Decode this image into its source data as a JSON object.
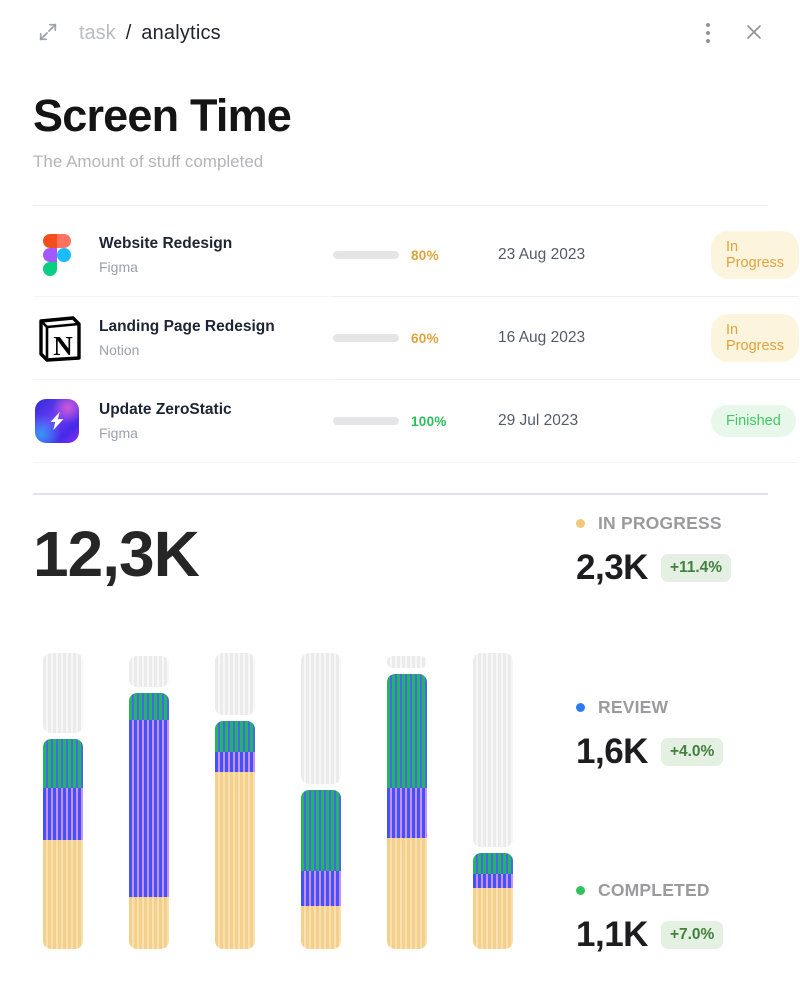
{
  "header": {
    "breadcrumb_parent": "task",
    "breadcrumb_separator": "/",
    "breadcrumb_current": "analytics",
    "icons": [
      "expand-icon",
      "kebab-menu-icon",
      "close-icon"
    ]
  },
  "title": "Screen Time",
  "subtitle": "The Amount of stuff completed",
  "tasks": [
    {
      "title": "Website Redesign",
      "app": "Figma",
      "icon": "figma-logo",
      "progress": 80,
      "progress_label": "80%",
      "date": "23 Aug 2023",
      "status": "In Progress",
      "status_type": "in-progress"
    },
    {
      "title": "Landing Page Redesign",
      "app": "Notion",
      "icon": "notion-logo",
      "progress": 60,
      "progress_label": "60%",
      "date": "16 Aug 2023",
      "status": "In Progress",
      "status_type": "in-progress"
    },
    {
      "title": "Update ZeroStatic",
      "app": "Figma",
      "icon": "zerostatic-logo",
      "progress": 100,
      "progress_label": "100%",
      "date": "29 Jul 2023",
      "status": "Finished",
      "status_type": "finished"
    }
  ],
  "status_colors": {
    "in_progress": "#dfa23b",
    "finished": "#3fc865"
  },
  "summary_total": "12,3K",
  "legend": [
    {
      "label": "IN PROGRESS",
      "value": "2,3K",
      "delta": "+11.4%",
      "color": "#f2c879"
    },
    {
      "label": "REVIEW",
      "value": "1,6K",
      "delta": "+4.0%",
      "color": "#2b7bf3"
    },
    {
      "label": "COMPLETED",
      "value": "1,1K",
      "delta": "+7.0%",
      "color": "#2fc25b"
    }
  ],
  "chart_data": {
    "type": "bar",
    "stacked": true,
    "title": "Screen Time",
    "total_label": "12,3K",
    "categories": [
      "bar1",
      "bar2",
      "bar3",
      "bar4",
      "bar5",
      "bar6"
    ],
    "stack_order_bottom_to_top": [
      "in_progress",
      "review",
      "completed",
      "remaining"
    ],
    "colors": {
      "in_progress": "#f5d08a",
      "review": "#3f55f7",
      "completed": "#25b55b",
      "remaining": "#ebebeb"
    },
    "unit": "percent of chart height (estimated from pixels, no axis shown)",
    "bars": [
      {
        "in_progress": 37.0,
        "review": 17.5,
        "completed": 16.5,
        "remaining": 27.0
      },
      {
        "in_progress": 17.5,
        "review": 60.0,
        "completed": 9.0,
        "remaining": 10.5
      },
      {
        "in_progress": 60.0,
        "review": 7.0,
        "completed": 10.5,
        "remaining": 21.0
      },
      {
        "in_progress": 14.5,
        "review": 12.0,
        "completed": 27.5,
        "remaining": 44.5
      },
      {
        "in_progress": 37.5,
        "review": 17.0,
        "completed": 38.5,
        "remaining": 4.0
      },
      {
        "in_progress": 20.5,
        "review": 5.0,
        "completed": 7.0,
        "remaining": 65.5
      }
    ],
    "legend_position": "right",
    "grid": false
  }
}
